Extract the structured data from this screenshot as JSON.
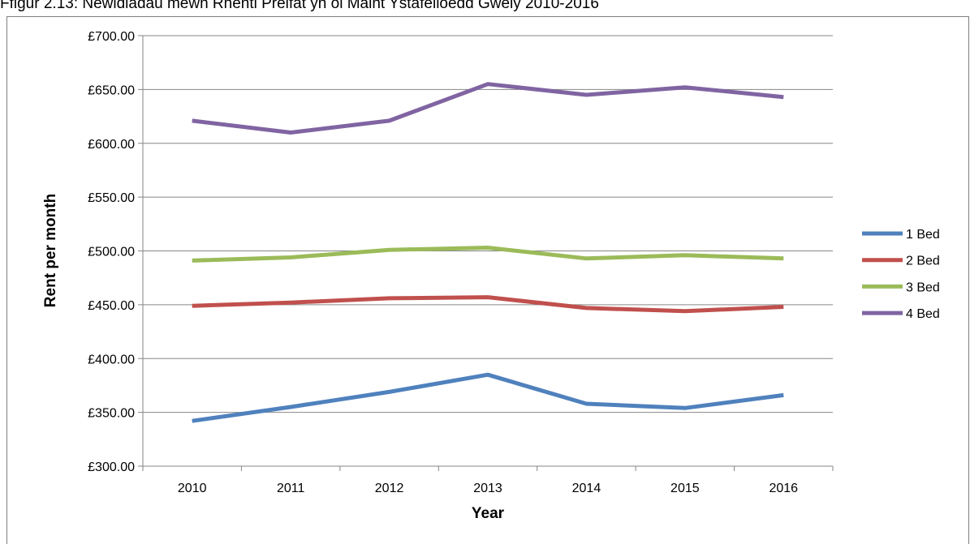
{
  "chart_data": {
    "type": "line",
    "title": "Ffigur 2.13: Newidiadau mewn Rhenti Preifat yn ôl Maint Ystafelloedd Gwely 2010-2016",
    "xlabel": "Year",
    "ylabel": "Rent per month",
    "categories": [
      "2010",
      "2011",
      "2012",
      "2013",
      "2014",
      "2015",
      "2016"
    ],
    "ylim": [
      300,
      700
    ],
    "ytick_step": 50,
    "ytick_prefix": "£",
    "grid": true,
    "legend_position": "right",
    "series": [
      {
        "name": "1 Bed",
        "color": "#4f81bd",
        "values": [
          342,
          355,
          369,
          385,
          358,
          354,
          366
        ]
      },
      {
        "name": "2 Bed",
        "color": "#c0504d",
        "values": [
          449,
          452,
          456,
          457,
          447,
          444,
          448
        ]
      },
      {
        "name": "3 Bed",
        "color": "#9bbb59",
        "values": [
          491,
          494,
          501,
          503,
          493,
          496,
          493
        ]
      },
      {
        "name": "4 Bed",
        "color": "#8064a2",
        "values": [
          621,
          610,
          621,
          655,
          645,
          652,
          643
        ]
      }
    ]
  }
}
